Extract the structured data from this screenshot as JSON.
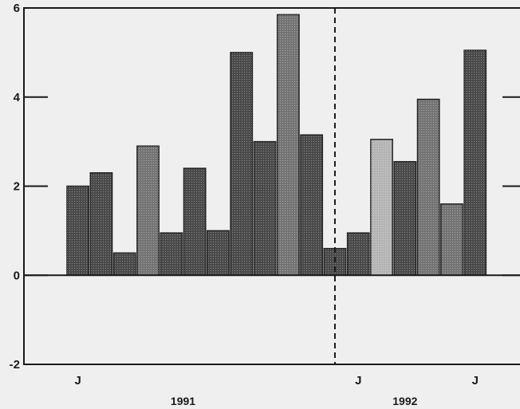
{
  "chart_data": {
    "type": "bar",
    "ylim": [
      -2,
      6
    ],
    "yticks": [
      -2,
      0,
      2,
      4,
      6
    ],
    "y_tick_labels": [
      "-2",
      "0",
      "2",
      "4",
      "6"
    ],
    "values": [
      2.0,
      2.3,
      0.5,
      2.9,
      0.95,
      2.4,
      1.0,
      5.0,
      3.0,
      5.85,
      3.15,
      0.6,
      0.95,
      3.05,
      2.55,
      3.95,
      1.6,
      5.05
    ],
    "bar_shades": [
      "dark",
      "dark",
      "dark",
      "medium",
      "dark",
      "dark",
      "dark",
      "dark",
      "dark",
      "medium",
      "dark",
      "dark",
      "dark",
      "light",
      "dark",
      "medium",
      "medium",
      "dark"
    ],
    "month_labels": [
      {
        "text": "J",
        "bar_index": 0.5
      },
      {
        "text": "J",
        "bar_index": 12.5
      },
      {
        "text": "J",
        "bar_index": 17.5
      }
    ],
    "year_labels": [
      {
        "text": "1991",
        "bar_index": 5
      },
      {
        "text": "1992",
        "bar_index": 14.5
      }
    ],
    "divider_after_bar": 11.5,
    "grid": false,
    "colors": {
      "dark": "#4a4a4a",
      "medium": "#747474",
      "light": "#b4b4b4",
      "axis": "#1a1a1a",
      "background": "#efefef"
    }
  }
}
